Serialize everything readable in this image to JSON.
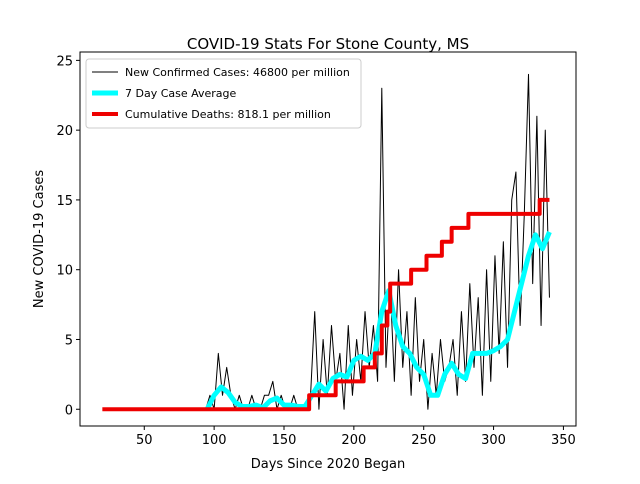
{
  "chart_data": {
    "type": "line",
    "title": "COVID-19 Stats For Stone County, MS",
    "x_label": "Days Since 2020 Began",
    "y_label": "New COVID-19 Cases",
    "xlim": [
      4,
      359
    ],
    "xticks": [
      50,
      100,
      150,
      200,
      250,
      300,
      350
    ],
    "ylim": [
      -1.2,
      25.6
    ],
    "yticks": [
      0,
      5,
      10,
      15,
      20,
      25
    ],
    "legend": "upper left",
    "series": [
      {
        "name": "New Confirmed Cases: 46800 per million",
        "color": "#000000",
        "linewidth": 1,
        "x": [
          94,
          97,
          100,
          103,
          106,
          109,
          112,
          115,
          118,
          121,
          124,
          127,
          130,
          133,
          136,
          139,
          142,
          145,
          148,
          151,
          154,
          157,
          160,
          163,
          166,
          169,
          172,
          175,
          178,
          181,
          184,
          187,
          190,
          193,
          196,
          199,
          202,
          205,
          208,
          211,
          214,
          217,
          220,
          223,
          226,
          229,
          232,
          235,
          238,
          241,
          244,
          247,
          250,
          253,
          256,
          259,
          262,
          265,
          268,
          271,
          274,
          277,
          280,
          283,
          286,
          289,
          292,
          295,
          298,
          301,
          304,
          307,
          310,
          313,
          316,
          319,
          322,
          325,
          328,
          331,
          334,
          337,
          340
        ],
        "values": [
          0,
          1,
          0,
          4,
          1,
          3,
          1,
          0,
          1,
          0,
          0,
          1,
          0,
          0,
          1,
          1,
          2,
          0,
          1,
          0,
          0,
          1,
          0,
          0,
          0,
          1,
          7,
          0,
          5,
          1,
          6,
          2,
          4,
          0,
          6,
          1,
          5,
          2,
          7,
          3,
          6,
          2,
          23,
          3,
          9,
          2,
          10,
          3,
          7,
          1,
          8,
          2,
          5,
          0,
          4,
          1,
          5,
          2,
          3,
          5,
          1,
          7,
          2,
          9,
          3,
          8,
          1,
          10,
          2,
          11,
          4,
          12,
          3,
          15,
          17,
          6,
          14,
          24,
          9,
          21,
          6,
          20,
          8
        ]
      },
      {
        "name": "7 Day Case Average",
        "color": "#00ffff",
        "linewidth": 5,
        "x": [
          95,
          100,
          105,
          110,
          115,
          120,
          125,
          130,
          135,
          140,
          145,
          150,
          155,
          160,
          165,
          170,
          175,
          180,
          185,
          190,
          195,
          200,
          205,
          210,
          215,
          220,
          225,
          230,
          235,
          240,
          245,
          250,
          255,
          260,
          265,
          270,
          275,
          280,
          285,
          290,
          295,
          300,
          305,
          310,
          315,
          320,
          325,
          330,
          335,
          340
        ],
        "values": [
          0,
          1,
          1.6,
          1.2,
          0.5,
          0.2,
          0.2,
          0.3,
          0.1,
          0.6,
          0.8,
          0.3,
          0.3,
          0.2,
          0.2,
          1,
          1.8,
          1.3,
          2.2,
          2.5,
          2.3,
          3.5,
          3.8,
          3.5,
          4,
          7,
          8.5,
          6,
          4.5,
          4,
          3,
          2.5,
          1,
          1,
          2.5,
          3.3,
          2.5,
          2.2,
          4,
          4,
          4,
          4.2,
          4.5,
          5,
          7,
          9,
          11,
          12.5,
          11.5,
          12.7
        ]
      },
      {
        "name": "Cumulative Deaths: 818.1 per million",
        "color": "#ee0000",
        "linewidth": 4,
        "x": [
          20,
          168,
          168,
          187,
          187,
          207,
          207,
          215,
          215,
          220,
          220,
          224,
          224,
          226,
          226,
          231,
          231,
          241,
          241,
          252,
          252,
          263,
          263,
          270,
          270,
          282,
          282,
          333,
          333,
          340
        ],
        "values": [
          0,
          0,
          1,
          1,
          2,
          2,
          3,
          3,
          4,
          4,
          6,
          6,
          7,
          7,
          9,
          9,
          9,
          9,
          10,
          10,
          11,
          11,
          12,
          12,
          13,
          13,
          14,
          14,
          15,
          15
        ]
      }
    ]
  }
}
